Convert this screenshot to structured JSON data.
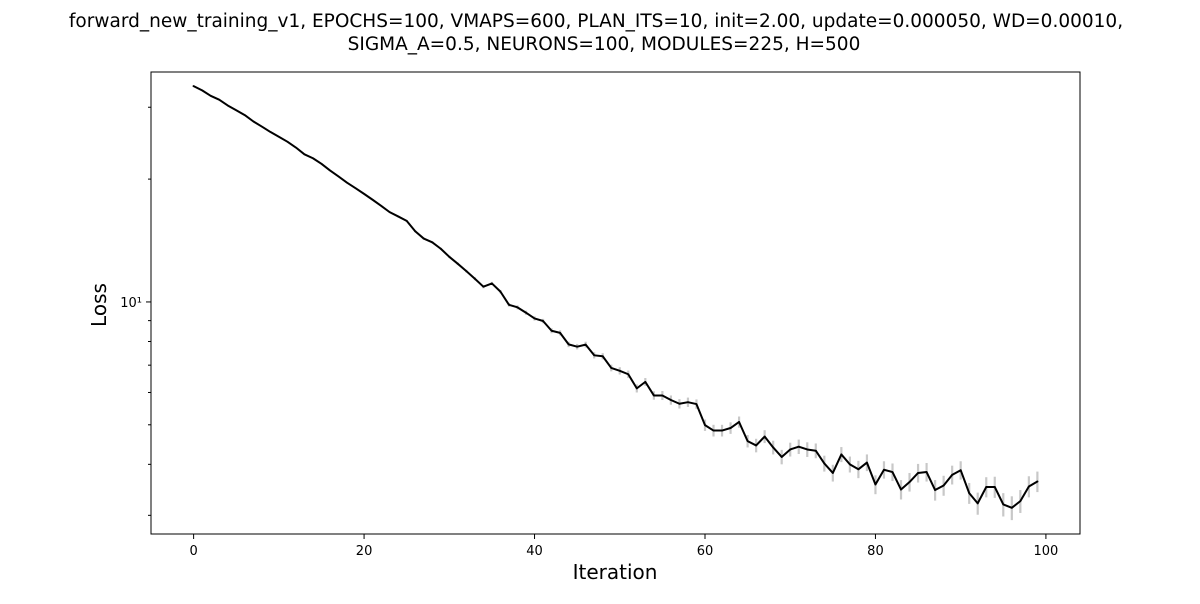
{
  "chart_data": {
    "type": "line",
    "title_lines": [
      "forward_new_training_v1, EPOCHS=100, VMAPS=600, PLAN_ITS=10, init=2.00, update=0.000050, WD=0.00010,",
      "SIGMA_A=0.5, NEURONS=100, MODULES=225, H=500"
    ],
    "xlabel": "Iteration",
    "ylabel": "Loss",
    "xlim": [
      -5,
      104
    ],
    "ylim": [
      2.7,
      36.6
    ],
    "yscale": "log",
    "x_ticks": [
      0,
      20,
      40,
      60,
      80,
      100
    ],
    "x_tick_labels": [
      "0",
      "20",
      "40",
      "60",
      "80",
      "100"
    ],
    "y_major_ticks": [
      10
    ],
    "y_major_tick_labels": [
      "10¹"
    ],
    "y_minor_ticks": [
      3,
      4,
      5,
      6,
      7,
      8,
      9,
      20,
      30
    ],
    "grid": false,
    "line_color": "#000000",
    "errorbar_color": "#c8c8c8",
    "series": [
      {
        "values": [
          33.8,
          33.0,
          32.0,
          31.3,
          30.3,
          29.5,
          28.7,
          27.7,
          26.9,
          26.1,
          25.4,
          24.7,
          23.9,
          23.0,
          22.5,
          21.8,
          21.0,
          20.3,
          19.6,
          19.0,
          18.4,
          17.8,
          17.2,
          16.6,
          16.2,
          15.8,
          14.9,
          14.3,
          14.0,
          13.5,
          12.9,
          12.4,
          11.9,
          11.4,
          10.9,
          11.1,
          10.6,
          9.84,
          9.7,
          9.41,
          9.11,
          8.98,
          8.5,
          8.4,
          7.87,
          7.77,
          7.86,
          7.4,
          7.36,
          6.89,
          6.78,
          6.65,
          6.14,
          6.37,
          5.9,
          5.9,
          5.75,
          5.63,
          5.68,
          5.62,
          4.99,
          4.84,
          4.84,
          4.91,
          5.08,
          4.56,
          4.45,
          4.68,
          4.4,
          4.17,
          4.35,
          4.42,
          4.35,
          4.32,
          4.02,
          3.81,
          4.23,
          4.0,
          3.89,
          4.04,
          3.57,
          3.88,
          3.83,
          3.47,
          3.62,
          3.81,
          3.83,
          3.46,
          3.55,
          3.77,
          3.87,
          3.4,
          3.21,
          3.52,
          3.52,
          3.19,
          3.13,
          3.25,
          3.53,
          3.63
        ],
        "errors": [
          0.05,
          0.05,
          0.05,
          0.05,
          0.05,
          0.05,
          0.05,
          0.05,
          0.05,
          0.05,
          0.06,
          0.06,
          0.06,
          0.06,
          0.06,
          0.06,
          0.06,
          0.06,
          0.07,
          0.07,
          0.07,
          0.07,
          0.07,
          0.07,
          0.08,
          0.08,
          0.08,
          0.08,
          0.08,
          0.08,
          0.09,
          0.09,
          0.09,
          0.1,
          0.1,
          0.1,
          0.1,
          0.1,
          0.11,
          0.11,
          0.11,
          0.11,
          0.12,
          0.12,
          0.12,
          0.12,
          0.13,
          0.13,
          0.13,
          0.13,
          0.14,
          0.14,
          0.14,
          0.14,
          0.14,
          0.15,
          0.15,
          0.15,
          0.15,
          0.15,
          0.16,
          0.16,
          0.16,
          0.16,
          0.16,
          0.16,
          0.17,
          0.17,
          0.17,
          0.17,
          0.17,
          0.18,
          0.18,
          0.18,
          0.18,
          0.18,
          0.18,
          0.18,
          0.19,
          0.19,
          0.19,
          0.19,
          0.19,
          0.19,
          0.19,
          0.2,
          0.2,
          0.2,
          0.2,
          0.2,
          0.2,
          0.2,
          0.2,
          0.2,
          0.21,
          0.21,
          0.21,
          0.21,
          0.21,
          0.21
        ]
      }
    ]
  }
}
